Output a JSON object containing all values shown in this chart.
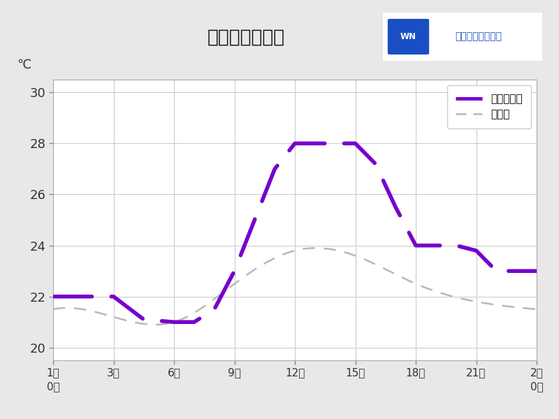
{
  "title": "勝浦の気温変化",
  "ylabel": "℃",
  "background_color": "#e8e8e8",
  "plot_bg_color": "#ffffff",
  "x_hours": [
    0,
    3,
    6,
    9,
    12,
    15,
    18,
    21,
    24
  ],
  "x_labels": [
    "1日\n0時",
    "3時",
    "6時",
    "9時",
    "12時",
    "15時",
    "18時",
    "21時",
    "2日\n0時"
  ],
  "ylim": [
    19.5,
    30.5
  ],
  "yticks": [
    20,
    22,
    24,
    26,
    28,
    30
  ],
  "forecast_x": [
    0,
    3,
    4.5,
    6,
    7,
    8,
    9,
    10,
    11,
    12,
    13,
    14,
    15,
    16,
    17,
    18,
    19,
    20,
    21,
    22,
    23,
    24
  ],
  "forecast_y": [
    22.0,
    22.0,
    21.1,
    21.0,
    21.0,
    21.5,
    23.0,
    25.0,
    27.0,
    28.0,
    28.0,
    28.0,
    28.0,
    27.2,
    25.5,
    24.0,
    24.0,
    24.0,
    23.8,
    23.0,
    23.0,
    23.0
  ],
  "normal_x": [
    0,
    3,
    6,
    9,
    12,
    15,
    18,
    21,
    24
  ],
  "normal_y": [
    21.5,
    21.2,
    21.0,
    22.5,
    23.8,
    23.6,
    22.5,
    21.8,
    21.5
  ],
  "forecast_color": "#7700cc",
  "normal_color": "#b8b8b8",
  "forecast_label": "今後の予報",
  "normal_label": "平年値",
  "logo_text": "ウェザーニュース",
  "logo_color": "#1a4fc4",
  "grid_color": "#cccccc"
}
